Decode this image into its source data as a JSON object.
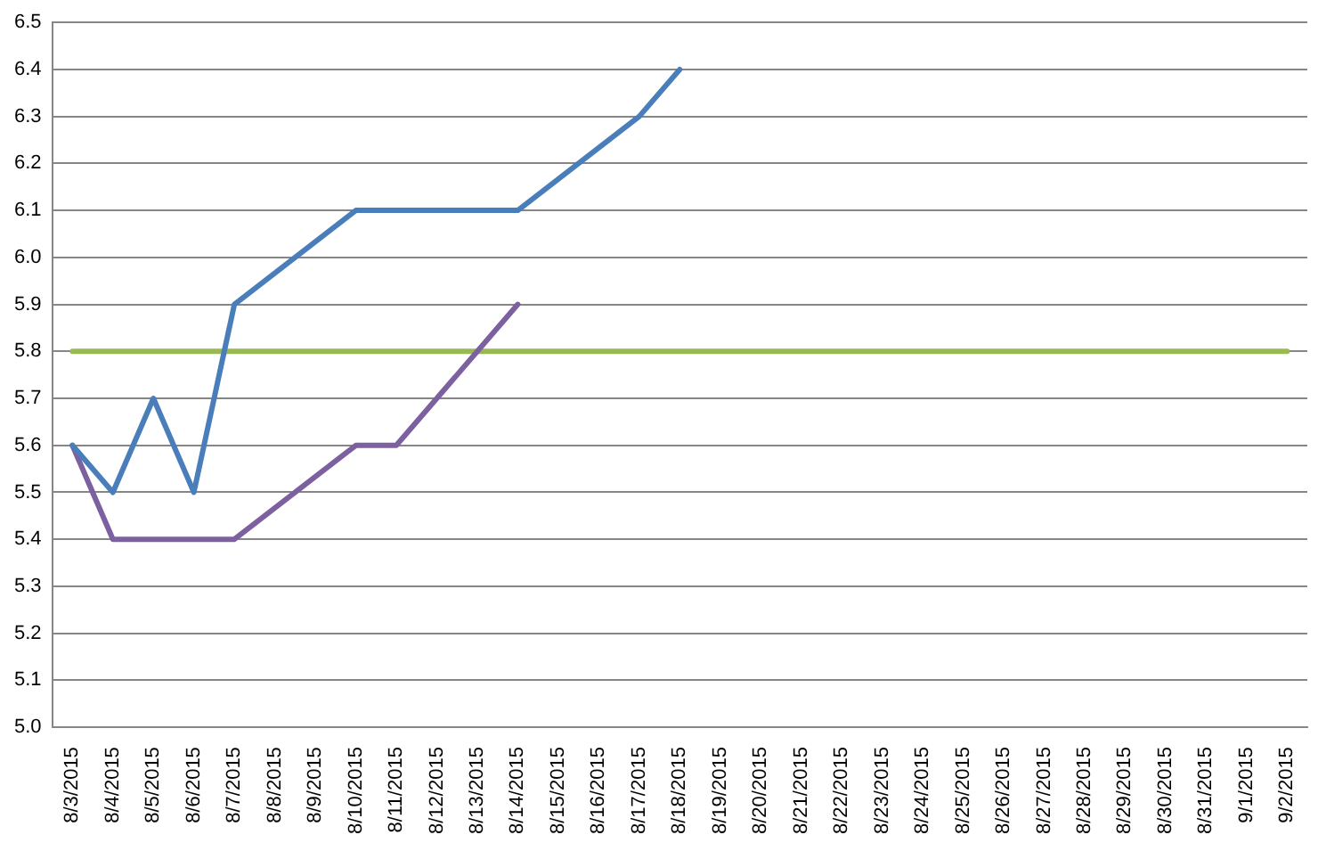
{
  "chart_data": {
    "type": "line",
    "categories": [
      "8/3/2015",
      "8/4/2015",
      "8/5/2015",
      "8/6/2015",
      "8/7/2015",
      "8/8/2015",
      "8/9/2015",
      "8/10/2015",
      "8/11/2015",
      "8/12/2015",
      "8/13/2015",
      "8/14/2015",
      "8/15/2015",
      "8/16/2015",
      "8/17/2015",
      "8/18/2015",
      "8/19/2015",
      "8/20/2015",
      "8/21/2015",
      "8/22/2015",
      "8/23/2015",
      "8/24/2015",
      "8/25/2015",
      "8/26/2015",
      "8/27/2015",
      "8/28/2015",
      "8/29/2015",
      "8/30/2015",
      "8/31/2015",
      "9/1/2015",
      "9/2/2015"
    ],
    "series": [
      {
        "color": "#4a7ebb",
        "values": [
          5.6,
          5.5,
          5.7,
          5.5,
          5.9,
          null,
          null,
          6.1,
          6.1,
          null,
          null,
          6.1,
          null,
          null,
          6.3,
          6.4,
          null,
          null,
          null,
          null,
          null,
          null,
          null,
          null,
          null,
          null,
          null,
          null,
          null,
          null,
          null
        ]
      },
      {
        "color": "#7d60a0",
        "values": [
          5.6,
          5.4,
          null,
          null,
          5.4,
          null,
          null,
          5.6,
          5.6,
          null,
          null,
          5.9,
          null,
          null,
          null,
          null,
          null,
          null,
          null,
          null,
          null,
          null,
          null,
          null,
          null,
          null,
          null,
          null,
          null,
          null,
          null
        ]
      },
      {
        "color": "#98b954",
        "values": [
          5.8,
          5.8,
          5.8,
          5.8,
          5.8,
          5.8,
          5.8,
          5.8,
          5.8,
          5.8,
          5.8,
          5.8,
          5.8,
          5.8,
          5.8,
          5.8,
          5.8,
          5.8,
          5.8,
          5.8,
          5.8,
          5.8,
          5.8,
          5.8,
          5.8,
          5.8,
          5.8,
          5.8,
          5.8,
          5.8,
          5.8
        ]
      }
    ],
    "ylim": [
      5.0,
      6.5
    ],
    "yticks": [
      {
        "value": 5.0,
        "label": "5.0"
      },
      5.1,
      5.2,
      5.3,
      5.4,
      5.5,
      5.6,
      5.7,
      5.8,
      5.9,
      {
        "value": 6.0,
        "label": "6.0"
      },
      6.1,
      6.2,
      6.3,
      6.4,
      6.5
    ],
    "grid": "y",
    "legend": false,
    "marker": "none",
    "line_style": "solid"
  }
}
